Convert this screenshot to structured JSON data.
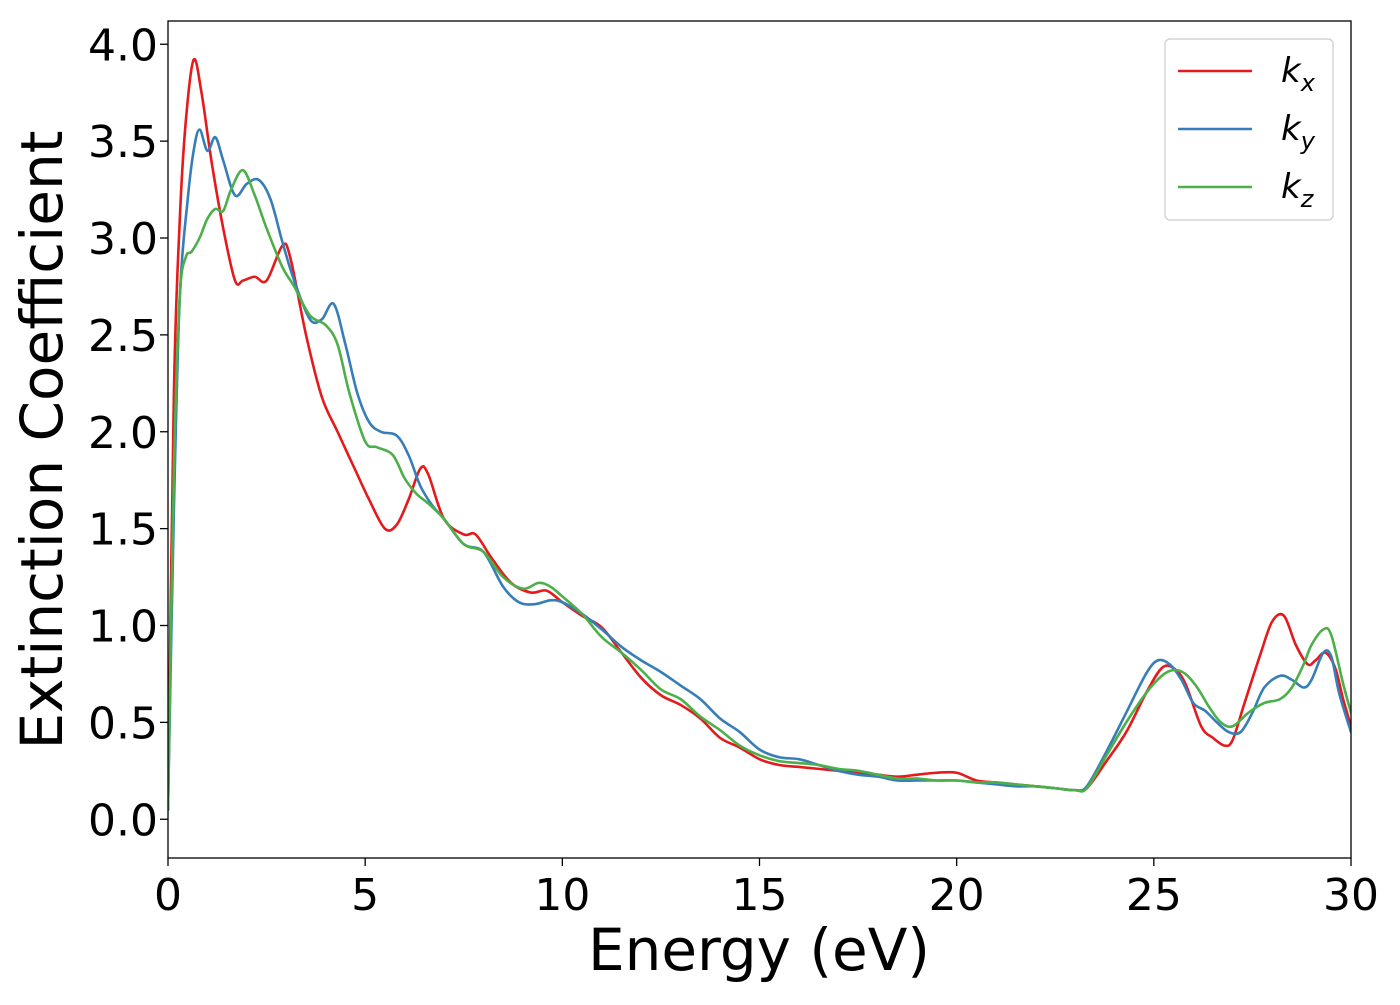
{
  "chart_data": {
    "type": "line",
    "title": "",
    "xlabel": "Energy (eV)",
    "ylabel": "Extinction Coefficient",
    "xlim": [
      0,
      30
    ],
    "ylim": [
      -0.2,
      4.12
    ],
    "xticks": [
      0,
      5,
      10,
      15,
      20,
      25,
      30
    ],
    "xtick_labels": [
      "0",
      "5",
      "10",
      "15",
      "20",
      "25",
      "30"
    ],
    "yticks": [
      0.0,
      0.5,
      1.0,
      1.5,
      2.0,
      2.5,
      3.0,
      3.5,
      4.0
    ],
    "ytick_labels": [
      "0.0",
      "0.5",
      "1.0",
      "1.5",
      "2.0",
      "2.5",
      "3.0",
      "3.5",
      "4.0"
    ],
    "grid": false,
    "legend_position": "top-right",
    "series": [
      {
        "name": "k",
        "subscript": "x",
        "color": "#e41a1c",
        "x": [
          0.0,
          0.15,
          0.3,
          0.45,
          0.65,
          0.85,
          1.1,
          1.4,
          1.7,
          1.9,
          2.2,
          2.5,
          2.9,
          3.1,
          3.5,
          3.9,
          4.3,
          4.8,
          5.1,
          5.5,
          5.8,
          6.1,
          6.4,
          6.6,
          7.0,
          7.5,
          7.8,
          8.2,
          8.7,
          9.2,
          9.6,
          10.0,
          10.5,
          11.0,
          11.5,
          12.0,
          12.5,
          13.0,
          13.5,
          14.0,
          14.5,
          15.0,
          15.5,
          16.0,
          16.5,
          17.0,
          17.5,
          18.0,
          18.5,
          19.0,
          19.5,
          20.0,
          20.5,
          21.0,
          21.5,
          22.0,
          22.5,
          23.0,
          23.3,
          23.8,
          24.3,
          24.8,
          25.2,
          25.5,
          25.8,
          26.2,
          26.5,
          26.8,
          27.0,
          27.3,
          27.7,
          28.0,
          28.3,
          28.6,
          28.9,
          29.1,
          29.35,
          29.6,
          29.8,
          30.0
        ],
        "y": [
          0.05,
          2.2,
          3.1,
          3.6,
          3.92,
          3.75,
          3.4,
          3.05,
          2.78,
          2.78,
          2.8,
          2.78,
          2.96,
          2.9,
          2.5,
          2.18,
          2.0,
          1.78,
          1.65,
          1.5,
          1.52,
          1.65,
          1.81,
          1.78,
          1.55,
          1.47,
          1.47,
          1.35,
          1.22,
          1.17,
          1.18,
          1.12,
          1.05,
          0.99,
          0.86,
          0.73,
          0.64,
          0.59,
          0.52,
          0.42,
          0.37,
          0.31,
          0.28,
          0.27,
          0.26,
          0.25,
          0.24,
          0.23,
          0.22,
          0.23,
          0.24,
          0.24,
          0.2,
          0.19,
          0.18,
          0.17,
          0.16,
          0.15,
          0.16,
          0.3,
          0.45,
          0.65,
          0.78,
          0.78,
          0.7,
          0.48,
          0.42,
          0.38,
          0.41,
          0.6,
          0.85,
          1.02,
          1.05,
          0.9,
          0.8,
          0.82,
          0.86,
          0.78,
          0.62,
          0.48
        ]
      },
      {
        "name": "k",
        "subscript": "y",
        "color": "#377eb8",
        "x": [
          0.0,
          0.15,
          0.3,
          0.5,
          0.65,
          0.8,
          1.0,
          1.2,
          1.4,
          1.7,
          2.0,
          2.3,
          2.6,
          2.9,
          3.2,
          3.6,
          3.9,
          4.2,
          4.5,
          4.8,
          5.1,
          5.4,
          5.8,
          6.1,
          6.4,
          6.7,
          7.0,
          7.5,
          8.0,
          8.5,
          8.9,
          9.3,
          9.7,
          10.0,
          10.5,
          11.0,
          11.5,
          12.0,
          12.5,
          13.0,
          13.5,
          14.0,
          14.5,
          15.0,
          15.5,
          16.0,
          16.5,
          17.0,
          17.5,
          18.0,
          18.5,
          19.0,
          19.5,
          20.0,
          20.5,
          21.0,
          21.5,
          22.0,
          22.5,
          23.0,
          23.3,
          23.8,
          24.3,
          24.8,
          25.1,
          25.4,
          25.7,
          26.0,
          26.3,
          26.6,
          26.9,
          27.2,
          27.5,
          27.8,
          28.2,
          28.5,
          28.8,
          29.0,
          29.3,
          29.5,
          29.7,
          30.0
        ],
        "y": [
          0.05,
          1.6,
          2.7,
          3.2,
          3.45,
          3.56,
          3.45,
          3.52,
          3.4,
          3.22,
          3.28,
          3.3,
          3.2,
          2.98,
          2.78,
          2.58,
          2.58,
          2.66,
          2.45,
          2.2,
          2.05,
          2.0,
          1.98,
          1.88,
          1.72,
          1.62,
          1.55,
          1.42,
          1.38,
          1.2,
          1.12,
          1.11,
          1.13,
          1.12,
          1.06,
          0.98,
          0.89,
          0.82,
          0.76,
          0.69,
          0.62,
          0.52,
          0.45,
          0.36,
          0.32,
          0.31,
          0.28,
          0.25,
          0.23,
          0.22,
          0.2,
          0.2,
          0.2,
          0.2,
          0.19,
          0.18,
          0.17,
          0.17,
          0.16,
          0.15,
          0.17,
          0.35,
          0.55,
          0.75,
          0.82,
          0.8,
          0.72,
          0.6,
          0.56,
          0.5,
          0.45,
          0.45,
          0.55,
          0.68,
          0.74,
          0.72,
          0.68,
          0.72,
          0.86,
          0.84,
          0.65,
          0.45
        ]
      },
      {
        "name": "k",
        "subscript": "z",
        "color": "#4daf4a",
        "x": [
          0.0,
          0.15,
          0.3,
          0.45,
          0.6,
          0.8,
          1.0,
          1.2,
          1.4,
          1.6,
          1.9,
          2.2,
          2.5,
          2.9,
          3.2,
          3.6,
          4.0,
          4.3,
          4.6,
          5.0,
          5.3,
          5.7,
          6.0,
          6.3,
          6.6,
          7.0,
          7.5,
          8.0,
          8.5,
          9.0,
          9.4,
          9.7,
          10.0,
          10.5,
          11.0,
          11.5,
          12.0,
          12.5,
          13.0,
          13.5,
          14.0,
          14.5,
          15.0,
          15.5,
          16.0,
          16.5,
          17.0,
          17.5,
          18.0,
          18.5,
          19.0,
          19.5,
          20.0,
          20.5,
          21.0,
          21.5,
          22.0,
          22.5,
          23.0,
          23.3,
          23.8,
          24.3,
          24.8,
          25.2,
          25.5,
          25.8,
          26.1,
          26.4,
          26.7,
          27.0,
          27.4,
          27.8,
          28.2,
          28.5,
          28.8,
          29.0,
          29.3,
          29.5,
          29.8,
          30.0
        ],
        "y": [
          0.05,
          1.8,
          2.7,
          2.9,
          2.93,
          3.0,
          3.1,
          3.15,
          3.14,
          3.25,
          3.35,
          3.22,
          3.05,
          2.85,
          2.75,
          2.6,
          2.55,
          2.45,
          2.2,
          1.95,
          1.92,
          1.88,
          1.76,
          1.68,
          1.63,
          1.55,
          1.42,
          1.38,
          1.25,
          1.19,
          1.22,
          1.2,
          1.15,
          1.06,
          0.94,
          0.86,
          0.77,
          0.67,
          0.62,
          0.53,
          0.46,
          0.38,
          0.33,
          0.3,
          0.29,
          0.28,
          0.26,
          0.25,
          0.23,
          0.21,
          0.21,
          0.2,
          0.2,
          0.19,
          0.19,
          0.18,
          0.17,
          0.16,
          0.15,
          0.16,
          0.33,
          0.5,
          0.65,
          0.74,
          0.77,
          0.75,
          0.68,
          0.58,
          0.5,
          0.48,
          0.55,
          0.6,
          0.62,
          0.68,
          0.8,
          0.9,
          0.98,
          0.95,
          0.7,
          0.55
        ]
      }
    ]
  }
}
